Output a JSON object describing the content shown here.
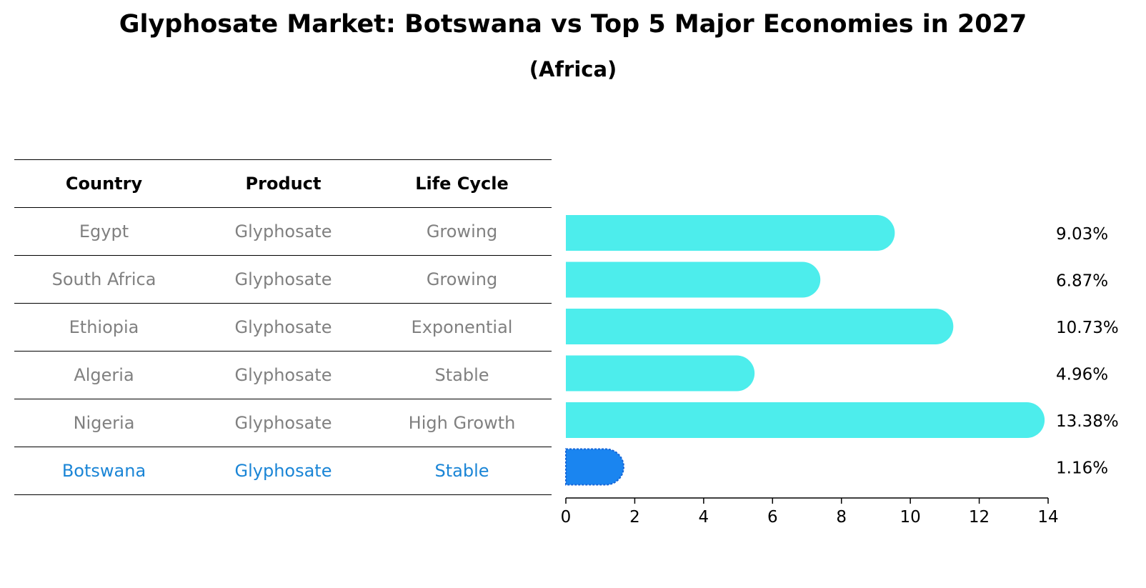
{
  "title": "Glyphosate Market: Botswana vs Top 5 Major Economies in 2027",
  "subtitle": "(Africa)",
  "table": {
    "headers": [
      "Country",
      "Product",
      "Life Cycle"
    ],
    "rows": [
      {
        "country": "Egypt",
        "product": "Glyphosate",
        "life_cycle": "Growing"
      },
      {
        "country": "South Africa",
        "product": "Glyphosate",
        "life_cycle": "Growing"
      },
      {
        "country": "Ethiopia",
        "product": "Glyphosate",
        "life_cycle": "Exponential"
      },
      {
        "country": "Algeria",
        "product": "Glyphosate",
        "life_cycle": "Stable"
      },
      {
        "country": "Nigeria",
        "product": "Glyphosate",
        "life_cycle": "High Growth"
      },
      {
        "country": "Botswana",
        "product": "Glyphosate",
        "life_cycle": "Stable"
      }
    ]
  },
  "colors": {
    "bar": "#4dedec",
    "highlight_bar": "#1a85f0",
    "highlight_text": "#1a85d6",
    "muted_text": "#808080"
  },
  "chart_data": {
    "type": "bar",
    "orientation": "horizontal",
    "title": "Glyphosate Market: Botswana vs Top 5 Major Economies in 2027",
    "subtitle": "(Africa)",
    "categories": [
      "Egypt",
      "South Africa",
      "Ethiopia",
      "Algeria",
      "Nigeria",
      "Botswana"
    ],
    "values": [
      9.03,
      6.87,
      10.73,
      4.96,
      13.38,
      1.16
    ],
    "value_labels": [
      "9.03%",
      "6.87%",
      "10.73%",
      "4.96%",
      "13.38%",
      "1.16%"
    ],
    "highlight": "Botswana",
    "xlim": [
      0,
      14
    ],
    "xticks": [
      0,
      2,
      4,
      6,
      8,
      10,
      12,
      14
    ],
    "xlabel": "",
    "ylabel": "",
    "grid": false,
    "legend": "none"
  }
}
